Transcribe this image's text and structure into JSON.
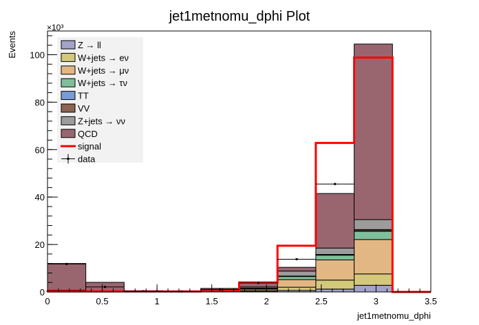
{
  "chart_data": {
    "type": "bar",
    "stacked": true,
    "title": "jet1metnomu_dphi Plot",
    "xlabel": "jet1metnomu_dphi",
    "ylabel": "Events",
    "y_multiplier": "×10³",
    "xlim": [
      0,
      3.5
    ],
    "ylim": [
      0,
      110
    ],
    "xticks": [
      "0",
      "0.5",
      "1",
      "1.5",
      "2",
      "2.5",
      "3",
      "3.5"
    ],
    "yticks": [
      "0",
      "20",
      "40",
      "60",
      "80",
      "100"
    ],
    "bin_edges": [
      0,
      0.35,
      0.7,
      1.05,
      1.4,
      1.75,
      2.1,
      2.45,
      2.8,
      3.15,
      3.5
    ],
    "series": [
      {
        "name": "Z → ll",
        "color": "#a3a3c8",
        "values": [
          0.1,
          0.05,
          0,
          0,
          0,
          0.2,
          0.6,
          1.2,
          2.8,
          0
        ]
      },
      {
        "name": "W+jets → eν",
        "color": "#d4c87a",
        "values": [
          0.1,
          0.05,
          0,
          0,
          0.1,
          0.4,
          1.4,
          3.8,
          4.8,
          0
        ]
      },
      {
        "name": "W+jets → μν",
        "color": "#e3b784",
        "values": [
          0.2,
          0.1,
          0,
          0,
          0.2,
          0.6,
          3.2,
          8.5,
          14.5,
          0
        ]
      },
      {
        "name": "W+jets → τν",
        "color": "#7fbf9b",
        "values": [
          0.1,
          0.05,
          0,
          0,
          0.1,
          0.3,
          1.3,
          2.0,
          3.5,
          0
        ]
      },
      {
        "name": "TT",
        "color": "#7b9bd6",
        "values": [
          0,
          0,
          0,
          0,
          0,
          0.05,
          0.1,
          0.1,
          0.2,
          0
        ]
      },
      {
        "name": "VV",
        "color": "#8c6452",
        "values": [
          0,
          0,
          0,
          0,
          0,
          0.05,
          0.1,
          0.2,
          0.5,
          0
        ]
      },
      {
        "name": "Z+jets → νν",
        "color": "#9c9c9c",
        "values": [
          0.2,
          0.1,
          0,
          0,
          0.2,
          0.5,
          2.1,
          2.7,
          4.2,
          0
        ]
      },
      {
        "name": "QCD",
        "color": "#996670",
        "values": [
          11.3,
          3.7,
          0.5,
          0.3,
          0.9,
          1.7,
          1.6,
          23.0,
          74.0,
          0
        ]
      }
    ],
    "signal": {
      "name": "signal",
      "color": "#ff0000",
      "values": [
        0.2,
        0.2,
        0.2,
        0.2,
        0.3,
        4.0,
        19.5,
        62.8,
        98.8,
        0
      ]
    },
    "data": {
      "name": "data",
      "values": [
        11.8,
        2.1,
        0.3,
        0.2,
        1.0,
        3.8,
        13.8,
        45.5,
        0,
        0
      ]
    },
    "legend_position": "top-left"
  }
}
